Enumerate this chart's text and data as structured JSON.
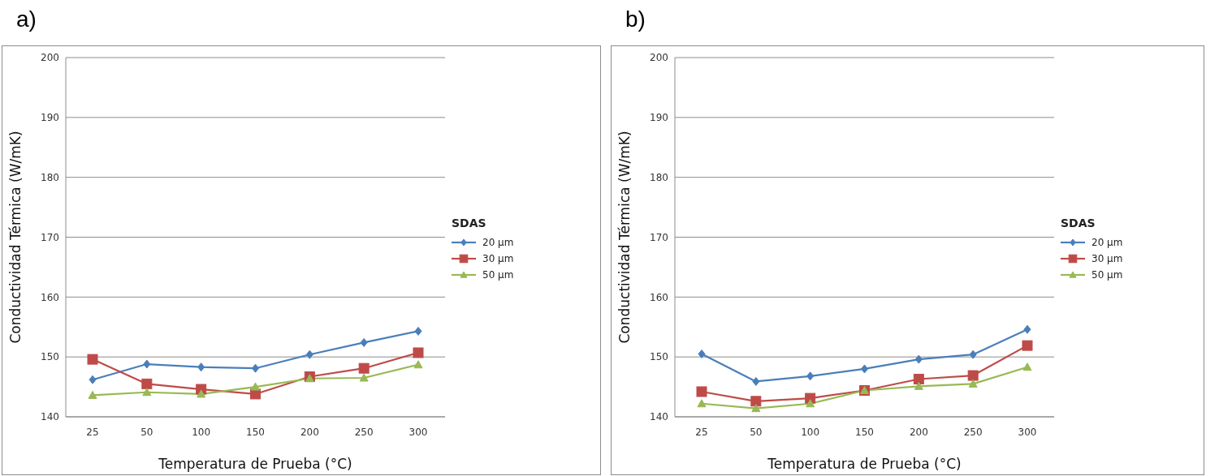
{
  "chart_data": [
    {
      "type": "line",
      "title": "a)",
      "xlabel": "Temperatura de Prueba (°C)",
      "ylabel": "Conductividad Térmica (W/mK)",
      "legend_title": "SDAS",
      "categories": [
        "25",
        "50",
        "100",
        "150",
        "200",
        "250",
        "300"
      ],
      "ylim": [
        140,
        200
      ],
      "yticks": [
        140,
        150,
        160,
        170,
        180,
        190,
        200
      ],
      "grid": "y",
      "legend": "right",
      "series": [
        {
          "name": "20 µm",
          "color": "#4a7ebb",
          "marker": "diamond",
          "values": [
            146.2,
            148.8,
            148.3,
            148.1,
            150.4,
            152.4,
            154.3
          ]
        },
        {
          "name": "30 µm",
          "color": "#be4b48",
          "marker": "square",
          "values": [
            149.6,
            145.5,
            144.6,
            143.8,
            146.7,
            148.1,
            150.7
          ]
        },
        {
          "name": "50 µm",
          "color": "#98b954",
          "marker": "triangle",
          "values": [
            143.6,
            144.1,
            143.8,
            145.0,
            146.4,
            146.5,
            148.7
          ]
        }
      ]
    },
    {
      "type": "line",
      "title": "b)",
      "xlabel": "Temperatura de Prueba (°C)",
      "ylabel": "Conductividad Térmica (W/mK)",
      "legend_title": "SDAS",
      "categories": [
        "25",
        "50",
        "100",
        "150",
        "200",
        "250",
        "300"
      ],
      "ylim": [
        140,
        200
      ],
      "yticks": [
        140,
        150,
        160,
        170,
        180,
        190,
        200
      ],
      "grid": "y",
      "legend": "right",
      "series": [
        {
          "name": "20 µm",
          "color": "#4a7ebb",
          "marker": "diamond",
          "values": [
            150.5,
            145.9,
            146.8,
            148.0,
            149.6,
            150.4,
            154.6
          ]
        },
        {
          "name": "30 µm",
          "color": "#be4b48",
          "marker": "square",
          "values": [
            144.2,
            142.6,
            143.1,
            144.4,
            146.3,
            146.9,
            151.9
          ]
        },
        {
          "name": "50 µm",
          "color": "#98b954",
          "marker": "triangle",
          "values": [
            142.2,
            141.4,
            142.2,
            144.4,
            145.1,
            145.5,
            148.3
          ]
        }
      ]
    }
  ]
}
